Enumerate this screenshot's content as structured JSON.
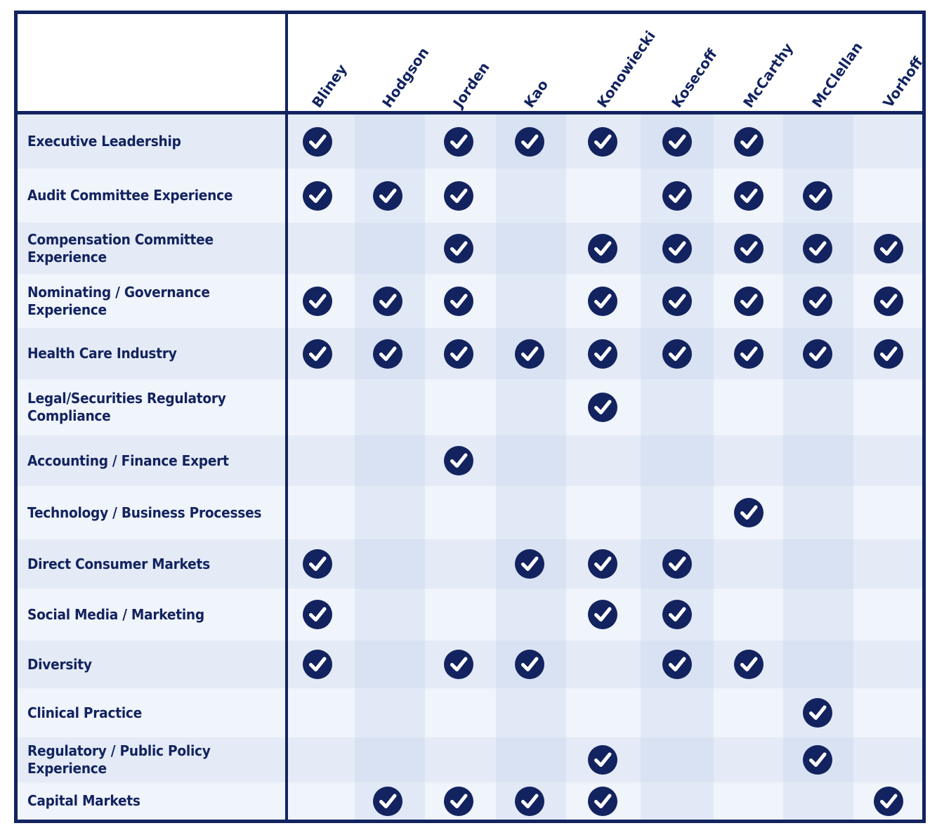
{
  "directors": [
    "Bliney",
    "Hodgson",
    "Jorden",
    "Kao",
    "Konowiecki",
    "Kosecoff",
    "McCarthy",
    "McClellan",
    "Vorhoff"
  ],
  "skills": [
    {
      "label": "Executive Leadership",
      "checks": [
        true,
        false,
        true,
        true,
        true,
        true,
        true,
        false,
        false
      ]
    },
    {
      "label": "Audit Committee Experience",
      "checks": [
        true,
        true,
        true,
        false,
        false,
        true,
        true,
        true,
        false
      ]
    },
    {
      "label": "Compensation Committee Experience",
      "checks": [
        false,
        false,
        true,
        false,
        true,
        true,
        true,
        true,
        true
      ]
    },
    {
      "label": "Nominating / Governance Experience",
      "checks": [
        true,
        true,
        true,
        false,
        true,
        true,
        true,
        true,
        true
      ]
    },
    {
      "label": "Health Care Industry",
      "checks": [
        true,
        true,
        true,
        true,
        true,
        true,
        true,
        true,
        true
      ]
    },
    {
      "label": "Legal/Securities Regulatory Compliance",
      "checks": [
        false,
        false,
        false,
        false,
        true,
        false,
        false,
        false,
        false
      ]
    },
    {
      "label": "Accounting / Finance Expert",
      "checks": [
        false,
        false,
        true,
        false,
        false,
        false,
        false,
        false,
        false
      ]
    },
    {
      "label": "Technology / Business Processes",
      "checks": [
        false,
        false,
        false,
        false,
        false,
        false,
        true,
        false,
        false
      ]
    },
    {
      "label": "Direct Consumer Markets",
      "checks": [
        true,
        false,
        false,
        true,
        true,
        true,
        false,
        false,
        false
      ]
    },
    {
      "label": "Social Media / Marketing",
      "checks": [
        true,
        false,
        false,
        false,
        true,
        true,
        false,
        false,
        false
      ]
    },
    {
      "label": "Diversity",
      "checks": [
        true,
        false,
        true,
        true,
        false,
        true,
        true,
        false,
        false
      ]
    },
    {
      "label": "Clinical Practice",
      "checks": [
        false,
        false,
        false,
        false,
        false,
        false,
        false,
        true,
        false
      ]
    },
    {
      "label": "Regulatory / Public Policy Experience",
      "checks": [
        false,
        false,
        false,
        false,
        true,
        false,
        false,
        true,
        false
      ]
    },
    {
      "label": "Capital Markets",
      "checks": [
        false,
        true,
        true,
        true,
        true,
        false,
        false,
        false,
        true
      ]
    }
  ],
  "colors": {
    "navy": "#13235f",
    "row_light": "#f0f4fb",
    "row_dark": "#e4ebf6",
    "col_shade": "rgba(190,205,232,0.28)"
  },
  "icons": {
    "check": "check-circle-icon"
  }
}
